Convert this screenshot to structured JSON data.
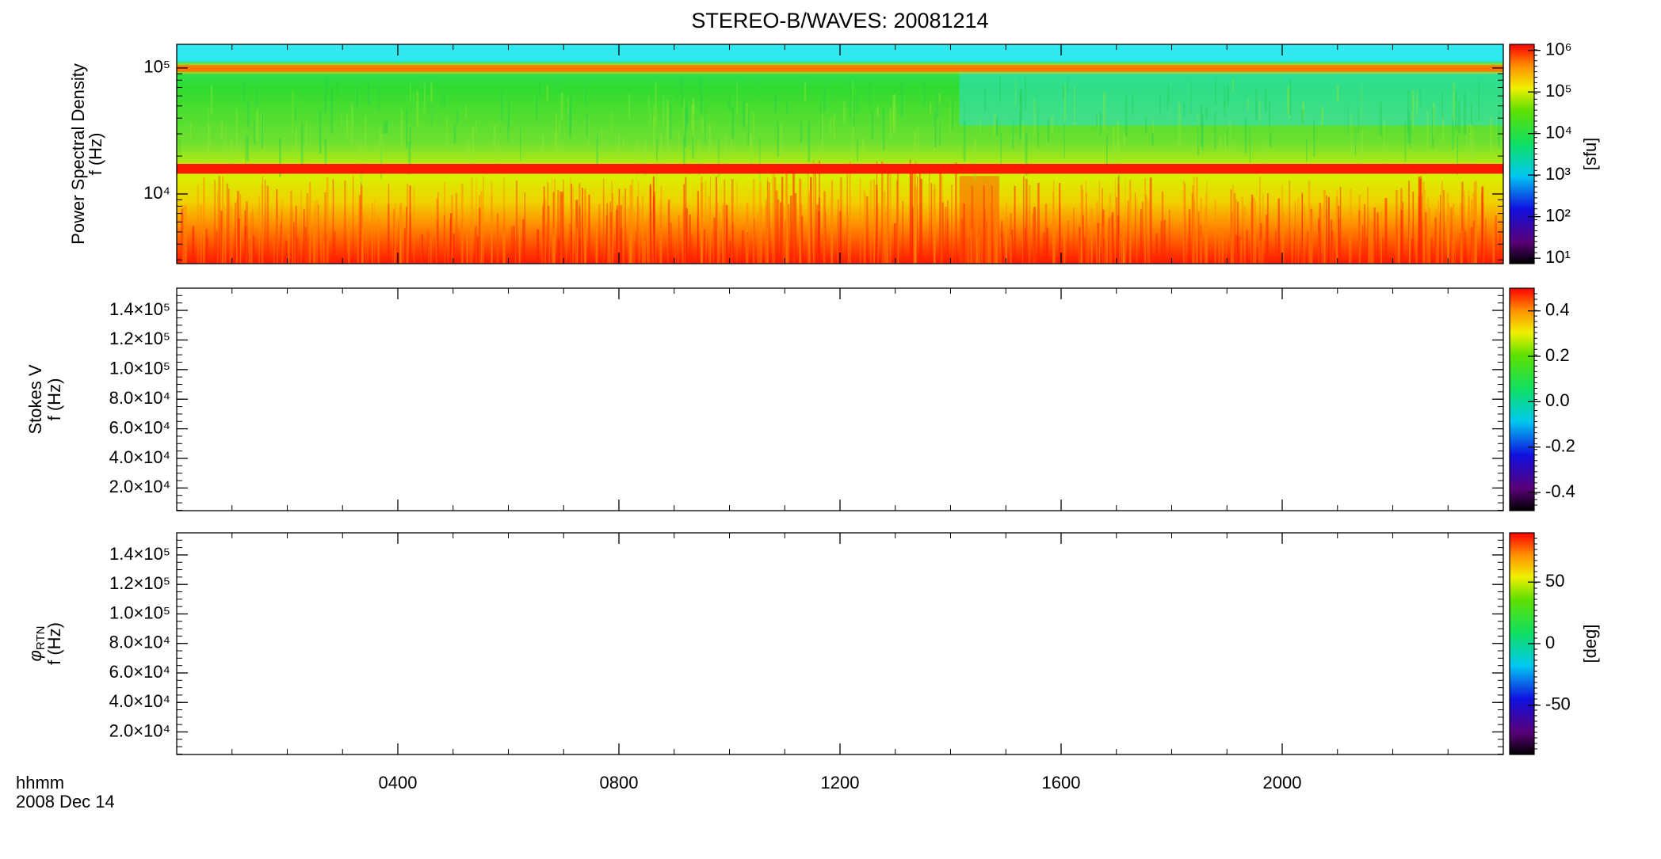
{
  "title": "STEREO-B/WAVES: 20081214",
  "x_label": "hhmm",
  "date_label": "2008 Dec 14",
  "xlim": [
    0,
    24
  ],
  "xticks": [
    {
      "value": 4,
      "label": "0400"
    },
    {
      "value": 8,
      "label": "0800"
    },
    {
      "value": 12,
      "label": "1200"
    },
    {
      "value": 16,
      "label": "1600"
    },
    {
      "value": 20,
      "label": "2000"
    }
  ],
  "chart_data": [
    {
      "type": "spectrogram",
      "ylabel": "Power Spectral Density",
      "ylabel2": "f (Hz)",
      "log_y": true,
      "ylim": [
        2800,
        154000
      ],
      "yticks": [
        {
          "value": 10000,
          "label": "10⁴"
        },
        {
          "value": 100000,
          "label": "10⁵"
        }
      ],
      "colorbar": {
        "label": "[sfu]",
        "log": true,
        "lim": [
          7.4,
          1400000
        ],
        "ticks": [
          {
            "value": 10,
            "label": "10¹"
          },
          {
            "value": 100,
            "label": "10²"
          },
          {
            "value": 1000,
            "label": "10³"
          },
          {
            "value": 10000,
            "label": "10⁴"
          },
          {
            "value": 100000,
            "label": "10⁵"
          },
          {
            "value": 1000000,
            "label": "10⁶"
          }
        ]
      }
    },
    {
      "type": "spectrogram",
      "ylabel": "Stokes V",
      "ylabel2": "f (Hz)",
      "log_y": false,
      "ylim": [
        4700,
        155000
      ],
      "yticks": [
        {
          "value": 20000,
          "label": "2.0×10⁴"
        },
        {
          "value": 40000,
          "label": "4.0×10⁴"
        },
        {
          "value": 60000,
          "label": "6.0×10⁴"
        },
        {
          "value": 80000,
          "label": "8.0×10⁴"
        },
        {
          "value": 100000,
          "label": "1.0×10⁵"
        },
        {
          "value": 120000,
          "label": "1.2×10⁵"
        },
        {
          "value": 140000,
          "label": "1.4×10⁵"
        }
      ],
      "colorbar": {
        "log": false,
        "lim": [
          -0.48,
          0.5
        ],
        "ticks": [
          -0.4,
          -0.2,
          {
            "value": 0,
            "label": "0.0"
          },
          0.2,
          0.4
        ]
      }
    },
    {
      "type": "spectrogram",
      "ylabel": {
        "symbol": "φ",
        "sub": "RTN"
      },
      "ylabel2": "f (Hz)",
      "log_y": false,
      "ylim": [
        4700,
        155000
      ],
      "yticks": [
        {
          "value": 20000,
          "label": "2.0×10⁴"
        },
        {
          "value": 40000,
          "label": "4.0×10⁴"
        },
        {
          "value": 60000,
          "label": "6.0×10⁴"
        },
        {
          "value": 80000,
          "label": "8.0×10⁴"
        },
        {
          "value": 100000,
          "label": "1.0×10⁵"
        },
        {
          "value": 120000,
          "label": "1.2×10⁵"
        },
        {
          "value": 140000,
          "label": "1.4×10⁵"
        }
      ],
      "colorbar": {
        "label": "[deg]",
        "log": false,
        "lim": [
          -90,
          90
        ],
        "ticks": [
          -50,
          0,
          50
        ]
      }
    }
  ]
}
